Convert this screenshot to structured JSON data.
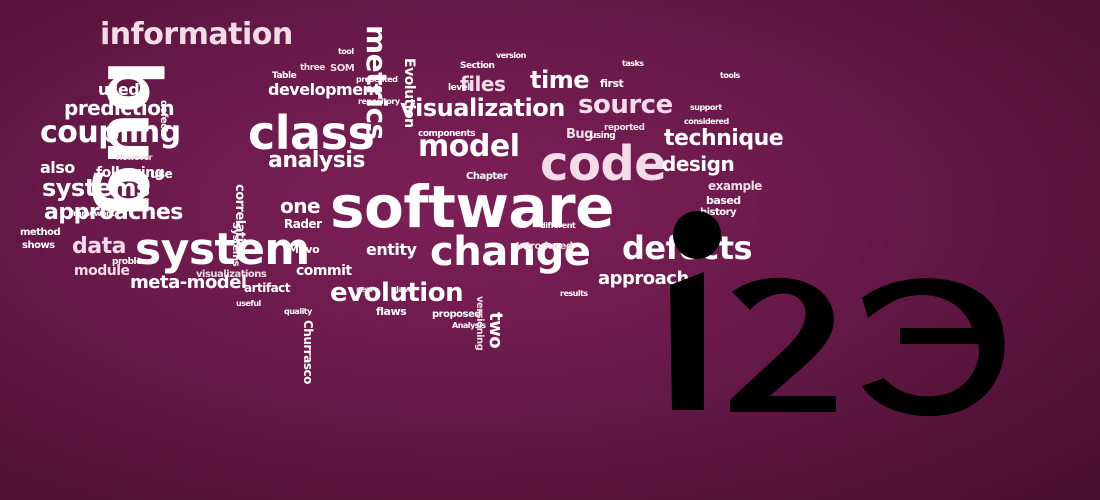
{
  "background_color": "#6a1a4b",
  "text_color": "#ffffff",
  "logo": {
    "text": "i2e",
    "icon": "logo-mark",
    "color": "#000000"
  },
  "word_cloud": [
    "software",
    "bug",
    "system",
    "code",
    "change",
    "class",
    "evolution",
    "metrics",
    "information",
    "coupling",
    "analysis",
    "model",
    "visualization",
    "source",
    "time",
    "defects",
    "systems",
    "approaches",
    "data",
    "prediction",
    "design",
    "technique",
    "development",
    "files",
    "entity",
    "commit",
    "meta-model",
    "approach",
    "module",
    "one",
    "also",
    "following",
    "used",
    "example",
    "based",
    "history",
    "artifact",
    "Evolution",
    "Bug",
    "Mevo",
    "Rader",
    "flaws",
    "Chapter",
    "Introduced",
    "proposed",
    "two",
    "Churrasco",
    "correlation",
    "visualizations",
    "method",
    "shows",
    "use",
    "problem",
    "three",
    "Table",
    "level",
    "Section",
    "first",
    "reported",
    "components",
    "using",
    "considered",
    "results",
    "versioning",
    "Analysis",
    "version",
    "tools",
    "support",
    "SOM",
    "presented",
    "tool",
    "repository",
    "defect",
    "However",
    "framework",
    "tasks",
    "useful",
    "different",
    "new",
    "Java",
    "quality",
    "Systems"
  ]
}
